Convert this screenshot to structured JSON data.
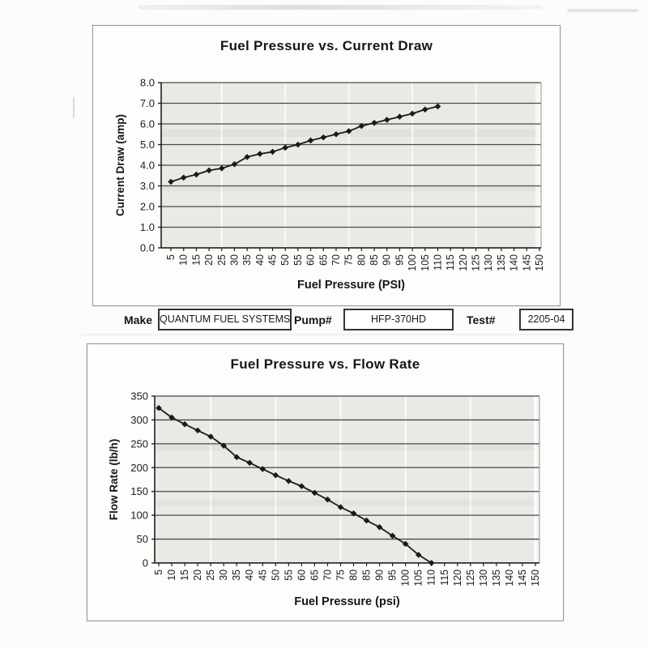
{
  "test_info": {
    "make_label": "Make",
    "make_value": "QUANTUM FUEL SYSTEMS",
    "pump_label": "Pump#",
    "pump_value": "HFP-370HD",
    "test_label": "Test#",
    "test_value": "2205-04"
  },
  "chart_data": [
    {
      "type": "line",
      "title": "Fuel Pressure vs. Current Draw",
      "xlabel": "Fuel Pressure (PSI)",
      "ylabel": "Current Draw (amp)",
      "x_ticks": [
        "5",
        "10",
        "15",
        "20",
        "25",
        "30",
        "35",
        "40",
        "45",
        "50",
        "55",
        "60",
        "65",
        "70",
        "75",
        "80",
        "85",
        "90",
        "95",
        "100",
        "105",
        "110",
        "115",
        "120",
        "125",
        "130",
        "135",
        "140",
        "145",
        "150"
      ],
      "y_ticks": [
        "8.0",
        "7.0",
        "6.0",
        "5.0",
        "4.0",
        "3.0",
        "2.0",
        "1.0",
        "0.0"
      ],
      "ylim": [
        0,
        8
      ],
      "x": [
        5,
        10,
        15,
        20,
        25,
        30,
        35,
        40,
        45,
        50,
        55,
        60,
        65,
        70,
        75,
        80,
        85,
        90,
        95,
        100,
        105,
        110
      ],
      "values": [
        3.2,
        3.4,
        3.55,
        3.75,
        3.85,
        4.05,
        4.4,
        4.55,
        4.65,
        4.85,
        5.0,
        5.2,
        5.35,
        5.5,
        5.65,
        5.9,
        6.05,
        6.2,
        6.35,
        6.5,
        6.7,
        6.85
      ],
      "marker": "diamond",
      "legend": "none",
      "grid": "horizontal",
      "line_color": "#1a1a1a",
      "plot_bg": "#e9eae6",
      "grid_color": "#4a4a48"
    },
    {
      "type": "line",
      "title": "Fuel Pressure vs. Flow Rate",
      "xlabel": "Fuel Pressure (psi)",
      "ylabel": "Flow Rate (lb/h)",
      "x_ticks": [
        "5",
        "10",
        "15",
        "20",
        "25",
        "30",
        "35",
        "40",
        "45",
        "50",
        "55",
        "60",
        "65",
        "70",
        "75",
        "80",
        "85",
        "90",
        "95",
        "100",
        "105",
        "110",
        "115",
        "120",
        "125",
        "130",
        "135",
        "140",
        "145",
        "150"
      ],
      "y_ticks": [
        "350",
        "300",
        "250",
        "200",
        "150",
        "100",
        "50",
        "0"
      ],
      "ylim": [
        0,
        350
      ],
      "x": [
        5,
        10,
        15,
        20,
        25,
        30,
        35,
        40,
        45,
        50,
        55,
        60,
        65,
        70,
        75,
        80,
        85,
        90,
        95,
        100,
        105,
        110
      ],
      "values": [
        325,
        305,
        291,
        278,
        265,
        246,
        222,
        210,
        197,
        184,
        172,
        161,
        147,
        133,
        117,
        104,
        89,
        75,
        57,
        40,
        17,
        0
      ],
      "marker": "diamond",
      "legend": "none",
      "grid": "horizontal",
      "line_color": "#1a1a1a",
      "plot_bg": "#e9eae6",
      "grid_color": "#4a4a48"
    }
  ]
}
